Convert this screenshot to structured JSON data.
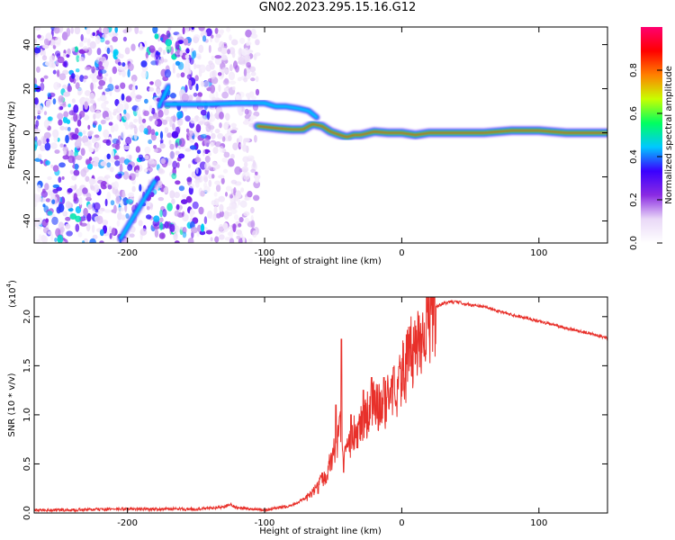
{
  "figure_title": "GN02.2023.295.15.16.G12",
  "chart_data": [
    {
      "type": "heatmap",
      "xlabel": "Height of straight line (km)",
      "ylabel": "Frequency (Hz)",
      "xlim": [
        -268,
        150
      ],
      "ylim": [
        -50,
        48
      ],
      "xticks": [
        "-200",
        "-100",
        "0",
        "100"
      ],
      "yticks": [
        "-40",
        "-20",
        "0",
        "20",
        "40"
      ],
      "colorbar": {
        "label": "Normalized spectral amplitude",
        "range": [
          0,
          1
        ],
        "ticks": [
          "0.0",
          "0.2",
          "0.4",
          "0.6",
          "0.8"
        ],
        "colors": [
          "#ffffff",
          "#e9d8f7",
          "#8a2be2",
          "#3a00ff",
          "#00c8ff",
          "#00ff60",
          "#c8ff00",
          "#ff8000",
          "#ff0000",
          "#ff0070"
        ]
      },
      "tracks": [
        {
          "x": [
            -205,
            -180
          ],
          "y": [
            -48,
            -22
          ]
        },
        {
          "x": [
            -177,
            -170
          ],
          "y": [
            12,
            21
          ]
        },
        {
          "x": [
            -172,
            -150,
            -140,
            -120,
            -100,
            -92,
            -85,
            -75,
            -68,
            -62
          ],
          "y": [
            13,
            13,
            13,
            13.5,
            13.5,
            12,
            12,
            11,
            10,
            7
          ]
        },
        {
          "x": [
            -105,
            -90,
            -80,
            -72,
            -65,
            -58,
            -52,
            -45,
            -40,
            -35,
            -30,
            -20,
            -10,
            0,
            10,
            20,
            40,
            60,
            80,
            100,
            120,
            150
          ],
          "y": [
            3,
            2,
            1.5,
            1.5,
            4,
            3,
            0.5,
            -1,
            -2,
            -1,
            -1,
            0.5,
            0,
            0,
            -1,
            0,
            0,
            0,
            1,
            1,
            0,
            0
          ]
        }
      ],
      "noise_region_x": [
        -268,
        -105
      ]
    },
    {
      "type": "line",
      "xlabel": "Height of straight line (km)",
      "ylabel": "SNR (10 * v/v)",
      "multiplier_label": "(x10",
      "multiplier_exp": "4",
      "xlim": [
        -268,
        150
      ],
      "ylim": [
        0,
        22000
      ],
      "xticks": [
        "-200",
        "-100",
        "0",
        "100"
      ],
      "yticks": [
        "0.0",
        "0.5",
        "1.0",
        "1.5",
        "2.0"
      ],
      "color": "#e8302a",
      "series": [
        {
          "x": [
            -268,
            -240,
            -210,
            -180,
            -150,
            -130,
            -125,
            -120,
            -100,
            -90,
            -80,
            -70,
            -65,
            -60,
            -55,
            -50,
            -47,
            -45,
            -43,
            -40,
            -35,
            -30,
            -25,
            -20,
            -15,
            -10,
            -5,
            0,
            5,
            10,
            15,
            20,
            25,
            30,
            35,
            40,
            50,
            60,
            70,
            80,
            90,
            100,
            110,
            120,
            130,
            140,
            150
          ],
          "y": [
            300,
            300,
            400,
            400,
            400,
            600,
            900,
            500,
            300,
            500,
            800,
            1500,
            2000,
            3000,
            4000,
            6000,
            7000,
            9000,
            5000,
            6000,
            8000,
            9000,
            10000,
            11000,
            10500,
            12000,
            12500,
            14000,
            15500,
            17000,
            18500,
            20000,
            21000,
            21300,
            21500,
            21500,
            21200,
            21000,
            20600,
            20200,
            19900,
            19500,
            19200,
            18800,
            18500,
            18200,
            17800
          ]
        }
      ],
      "spikes": [
        {
          "x": -61,
          "y": 2000
        },
        {
          "x": -48,
          "y": 11000
        },
        {
          "x": -44,
          "y": 17700
        },
        {
          "x": -37,
          "y": 10000
        },
        {
          "x": -28,
          "y": 12500
        },
        {
          "x": -22,
          "y": 13800
        },
        {
          "x": -13,
          "y": 13800
        },
        {
          "x": -6,
          "y": 14800
        },
        {
          "x": -2,
          "y": 14900
        }
      ]
    }
  ]
}
